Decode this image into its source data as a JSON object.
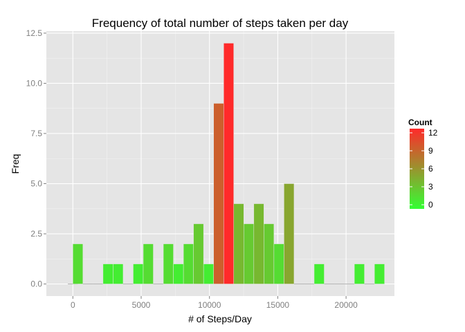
{
  "chart_data": {
    "type": "bar",
    "title": "Frequency of total number of steps taken per day",
    "xlabel": "# of Steps/Day",
    "ylabel": "Freq",
    "x_ticks": [
      "0",
      "5000",
      "10000",
      "15000",
      "20000"
    ],
    "y_ticks": [
      "0.0",
      "2.5",
      "5.0",
      "7.5",
      "10.0",
      "12.5"
    ],
    "xlim": [
      -1940,
      23540
    ],
    "ylim": [
      -0.6,
      12.6
    ],
    "grid": true,
    "bin_width": 736,
    "bins": [
      {
        "x": 0,
        "count": 0
      },
      {
        "x": 368,
        "count": 2
      },
      {
        "x": 1104,
        "count": 0
      },
      {
        "x": 1840,
        "count": 0
      },
      {
        "x": 2576,
        "count": 1
      },
      {
        "x": 3312,
        "count": 1
      },
      {
        "x": 4048,
        "count": 0
      },
      {
        "x": 4784,
        "count": 1
      },
      {
        "x": 5520,
        "count": 2
      },
      {
        "x": 6256,
        "count": 0
      },
      {
        "x": 6992,
        "count": 2
      },
      {
        "x": 7728,
        "count": 1
      },
      {
        "x": 8464,
        "count": 2
      },
      {
        "x": 9200,
        "count": 3
      },
      {
        "x": 9936,
        "count": 1
      },
      {
        "x": 10672,
        "count": 9
      },
      {
        "x": 11408,
        "count": 12
      },
      {
        "x": 12144,
        "count": 4
      },
      {
        "x": 12880,
        "count": 3
      },
      {
        "x": 13616,
        "count": 4
      },
      {
        "x": 14352,
        "count": 3
      },
      {
        "x": 15088,
        "count": 2
      },
      {
        "x": 15824,
        "count": 5
      },
      {
        "x": 16560,
        "count": 0
      },
      {
        "x": 17296,
        "count": 0
      },
      {
        "x": 18032,
        "count": 1
      },
      {
        "x": 18768,
        "count": 0
      },
      {
        "x": 19504,
        "count": 0
      },
      {
        "x": 20240,
        "count": 0
      },
      {
        "x": 20976,
        "count": 1
      },
      {
        "x": 21712,
        "count": 0
      },
      {
        "x": 22448,
        "count": 1
      }
    ],
    "legend": {
      "title": "Count",
      "position": "right",
      "labels": [
        "0",
        "3",
        "6",
        "9",
        "12"
      ],
      "range": [
        0,
        12
      ]
    },
    "colors": {
      "low": "#33ff33",
      "high": "#ff2a2a",
      "panel": "#e5e5e5",
      "grid_major": "#ffffff",
      "grid_minor": "#f2f2f2",
      "baseline": "#b0b0b0"
    }
  }
}
